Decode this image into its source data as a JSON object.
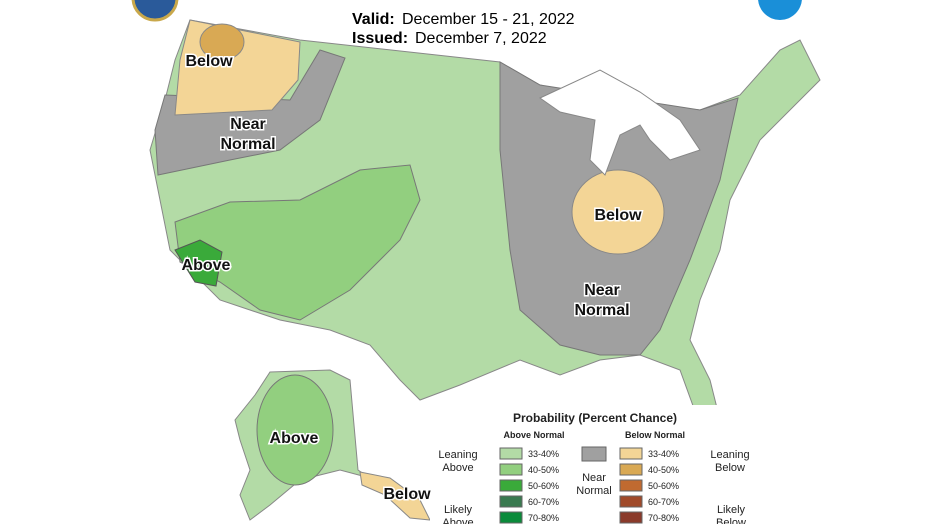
{
  "header": {
    "valid_label": "Valid:",
    "valid_date": "December 15 - 21, 2022",
    "issued_label": "Issued:",
    "issued_date": "December 7, 2022"
  },
  "map_labels": [
    {
      "lines": [
        "Below"
      ]
    },
    {
      "lines": [
        "Near",
        "Normal"
      ]
    },
    {
      "lines": [
        "Above"
      ]
    },
    {
      "lines": [
        "Below"
      ]
    },
    {
      "lines": [
        "Near",
        "Normal"
      ]
    },
    {
      "lines": [
        "Above"
      ]
    },
    {
      "lines": [
        "Below"
      ]
    }
  ],
  "legend": {
    "title": "Probability (Percent Chance)",
    "above_heading": "Above Normal",
    "below_heading": "Below Normal",
    "above_ranges": [
      "33-40%",
      "40-50%",
      "50-60%",
      "60-70%",
      "70-80%"
    ],
    "below_ranges": [
      "33-40%",
      "40-50%",
      "50-60%",
      "60-70%",
      "70-80%"
    ],
    "leaning_above": [
      "Leaning",
      "Above"
    ],
    "likely_above": [
      "Likely",
      "Above"
    ],
    "near_normal": [
      "Near",
      "Normal"
    ],
    "leaning_below": [
      "Leaning",
      "Below"
    ],
    "likely_below": [
      "Likely",
      "Below"
    ]
  }
}
